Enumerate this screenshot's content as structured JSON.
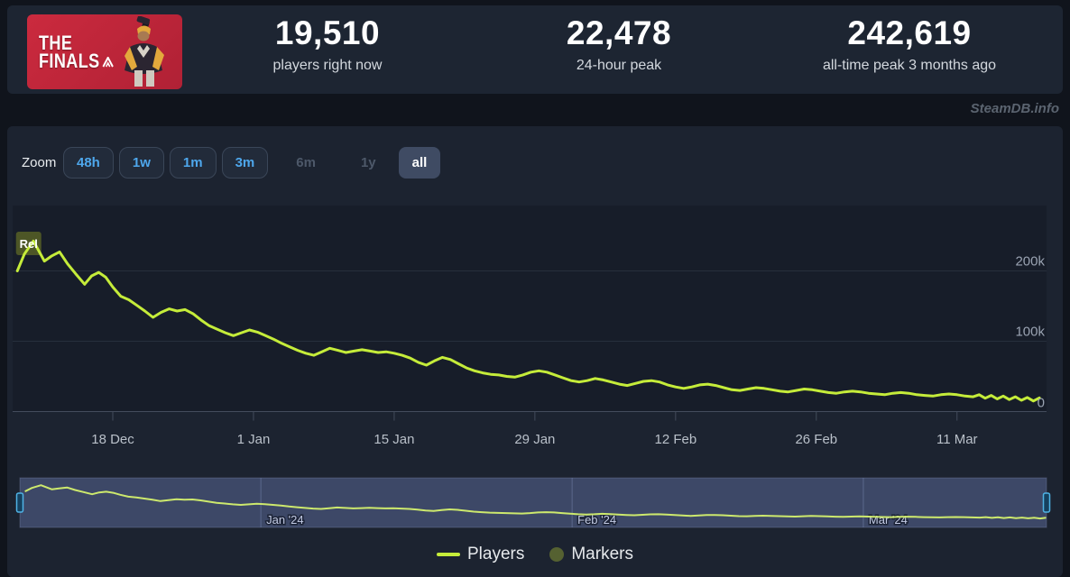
{
  "page": {
    "watermark": "SteamDB.info"
  },
  "game": {
    "logo_line1": "THE",
    "logo_line2": "FINALS"
  },
  "header": {
    "stats": [
      {
        "value": "19,510",
        "label": "players right now"
      },
      {
        "value": "22,478",
        "label": "24-hour peak"
      },
      {
        "value": "242,619",
        "label": "all-time peak 3 months ago"
      }
    ]
  },
  "toolbar": {
    "zoom_label": "Zoom",
    "buttons": [
      {
        "label": "48h",
        "state": "active"
      },
      {
        "label": "1w",
        "state": "active"
      },
      {
        "label": "1m",
        "state": "active"
      },
      {
        "label": "3m",
        "state": "active"
      },
      {
        "label": "6m",
        "state": "disabled"
      },
      {
        "label": "1y",
        "state": "disabled"
      },
      {
        "label": "all",
        "state": "selected"
      }
    ]
  },
  "legend": [
    {
      "label": "Players",
      "swatch": "line",
      "color": "#c5ec3a"
    },
    {
      "label": "Markers",
      "swatch": "circle",
      "color": "#5f6c31"
    }
  ],
  "chart_data": {
    "type": "line",
    "title": "THE FINALS — concurrent Steam players, all time",
    "x_unit": "days since release (2023-12-07)",
    "y_unit": "concurrent players",
    "y_range": [
      0,
      290000
    ],
    "grid": true,
    "legend_position": "bottom",
    "x_ticks": [
      {
        "day": 11,
        "label": "18 Dec"
      },
      {
        "day": 25,
        "label": "1 Jan"
      },
      {
        "day": 39,
        "label": "15 Jan"
      },
      {
        "day": 53,
        "label": "29 Jan"
      },
      {
        "day": 67,
        "label": "12 Feb"
      },
      {
        "day": 81,
        "label": "26 Feb"
      },
      {
        "day": 95,
        "label": "11 Mar"
      }
    ],
    "y_ticks": [
      {
        "value": 0,
        "label": "0"
      },
      {
        "value": 100000,
        "label": "100k"
      },
      {
        "value": 200000,
        "label": "200k"
      }
    ],
    "flags": [
      {
        "label": "Rel",
        "day": 2.0
      }
    ],
    "series": [
      {
        "name": "Players",
        "color": "#c5ec3a",
        "points": [
          [
            1.5,
            200000
          ],
          [
            2.2,
            224000
          ],
          [
            3.1,
            242619
          ],
          [
            4.2,
            214000
          ],
          [
            4.9,
            221000
          ],
          [
            5.7,
            227000
          ],
          [
            6.5,
            210000
          ],
          [
            7.3,
            196000
          ],
          [
            8.2,
            181000
          ],
          [
            8.9,
            193000
          ],
          [
            9.6,
            198000
          ],
          [
            10.3,
            191000
          ],
          [
            11.0,
            177000
          ],
          [
            11.8,
            164000
          ],
          [
            12.6,
            159000
          ],
          [
            13.4,
            151000
          ],
          [
            14.2,
            143000
          ],
          [
            15.0,
            134000
          ],
          [
            15.8,
            141000
          ],
          [
            16.6,
            146000
          ],
          [
            17.4,
            143000
          ],
          [
            18.2,
            145000
          ],
          [
            19.0,
            139000
          ],
          [
            19.8,
            130000
          ],
          [
            20.6,
            122000
          ],
          [
            21.4,
            117000
          ],
          [
            22.2,
            112000
          ],
          [
            23.0,
            108000
          ],
          [
            23.8,
            112000
          ],
          [
            24.6,
            116000
          ],
          [
            25.4,
            113000
          ],
          [
            26.2,
            108000
          ],
          [
            27.0,
            103000
          ],
          [
            27.8,
            97000
          ],
          [
            28.6,
            92000
          ],
          [
            29.4,
            87000
          ],
          [
            30.2,
            83000
          ],
          [
            31.0,
            80000
          ],
          [
            31.8,
            85000
          ],
          [
            32.6,
            90000
          ],
          [
            33.4,
            87000
          ],
          [
            34.2,
            84000
          ],
          [
            35.0,
            86000
          ],
          [
            35.8,
            88000
          ],
          [
            36.6,
            86000
          ],
          [
            37.4,
            84000
          ],
          [
            38.2,
            85000
          ],
          [
            39.0,
            83000
          ],
          [
            39.8,
            80000
          ],
          [
            40.6,
            76000
          ],
          [
            41.4,
            70000
          ],
          [
            42.2,
            66000
          ],
          [
            43.0,
            72000
          ],
          [
            43.8,
            77000
          ],
          [
            44.6,
            74000
          ],
          [
            45.4,
            68000
          ],
          [
            46.2,
            62000
          ],
          [
            47.0,
            58000
          ],
          [
            47.8,
            55000
          ],
          [
            48.6,
            53000
          ],
          [
            49.4,
            52000
          ],
          [
            50.2,
            50000
          ],
          [
            51.0,
            49000
          ],
          [
            51.8,
            52000
          ],
          [
            52.6,
            56000
          ],
          [
            53.4,
            58000
          ],
          [
            54.2,
            56000
          ],
          [
            55.0,
            52000
          ],
          [
            55.8,
            48000
          ],
          [
            56.6,
            44000
          ],
          [
            57.4,
            42000
          ],
          [
            58.2,
            44000
          ],
          [
            59.0,
            47000
          ],
          [
            59.8,
            45000
          ],
          [
            60.6,
            42000
          ],
          [
            61.4,
            39000
          ],
          [
            62.2,
            37000
          ],
          [
            63.0,
            40000
          ],
          [
            63.8,
            43000
          ],
          [
            64.6,
            44000
          ],
          [
            65.4,
            42000
          ],
          [
            66.2,
            38000
          ],
          [
            67.0,
            35000
          ],
          [
            67.8,
            33000
          ],
          [
            68.6,
            35000
          ],
          [
            69.4,
            38000
          ],
          [
            70.2,
            39000
          ],
          [
            71.0,
            37000
          ],
          [
            71.8,
            34000
          ],
          [
            72.6,
            31000
          ],
          [
            73.4,
            30000
          ],
          [
            74.2,
            32000
          ],
          [
            75.0,
            34000
          ],
          [
            75.8,
            33000
          ],
          [
            76.6,
            31000
          ],
          [
            77.4,
            29000
          ],
          [
            78.2,
            28000
          ],
          [
            79.0,
            30000
          ],
          [
            79.8,
            32000
          ],
          [
            80.6,
            31000
          ],
          [
            81.4,
            29000
          ],
          [
            82.2,
            27000
          ],
          [
            83.0,
            26000
          ],
          [
            83.8,
            28000
          ],
          [
            84.6,
            29000
          ],
          [
            85.4,
            28000
          ],
          [
            86.2,
            26000
          ],
          [
            87.0,
            25000
          ],
          [
            87.8,
            24000
          ],
          [
            88.6,
            26000
          ],
          [
            89.4,
            27000
          ],
          [
            90.2,
            26000
          ],
          [
            91.0,
            24000
          ],
          [
            91.8,
            23000
          ],
          [
            92.6,
            22000
          ],
          [
            93.4,
            24000
          ],
          [
            94.2,
            25000
          ],
          [
            95.0,
            24000
          ],
          [
            95.8,
            22000
          ],
          [
            96.6,
            21000
          ],
          [
            97.2,
            24000
          ],
          [
            97.8,
            19000
          ],
          [
            98.4,
            23000
          ],
          [
            99.0,
            18000
          ],
          [
            99.6,
            22000
          ],
          [
            100.2,
            17000
          ],
          [
            100.8,
            21000
          ],
          [
            101.4,
            16000
          ],
          [
            102.0,
            20000
          ],
          [
            102.6,
            15000
          ],
          [
            103.2,
            19510
          ]
        ]
      }
    ],
    "navigator": {
      "month_lines": [
        {
          "day": 25,
          "label": "Jan '24"
        },
        {
          "day": 56,
          "label": "Feb '24"
        },
        {
          "day": 85,
          "label": "Mar '24"
        }
      ],
      "selected_range": "all"
    }
  }
}
